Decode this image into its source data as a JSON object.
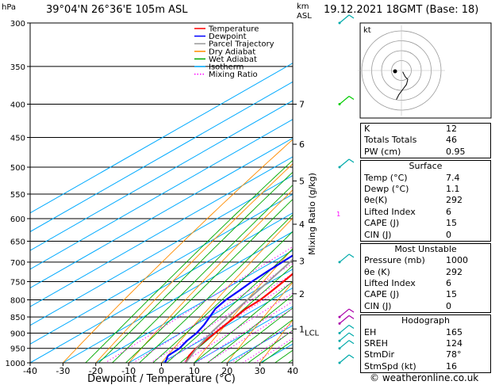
{
  "header": {
    "hpa_label": "hPa",
    "location": "39°04'N  26°36'E  105m  ASL",
    "km_label": "km",
    "asl_label": "ASL",
    "datetime": "19.12.2021  18GMT  (Base: 18)"
  },
  "legend": [
    {
      "label": "Temperature",
      "color": "#ff0000",
      "style": "solid"
    },
    {
      "label": "Dewpoint",
      "color": "#0000ff",
      "style": "solid"
    },
    {
      "label": "Parcel Trajectory",
      "color": "#999999",
      "style": "solid"
    },
    {
      "label": "Dry Adiabat",
      "color": "#ff8c00",
      "style": "solid"
    },
    {
      "label": "Wet Adiabat",
      "color": "#00aa00",
      "style": "solid"
    },
    {
      "label": "Isotherm",
      "color": "#00aaff",
      "style": "solid"
    },
    {
      "label": "Mixing Ratio",
      "color": "#ff00ff",
      "style": "dotted"
    }
  ],
  "chart_data": {
    "type": "line",
    "xlabel": "Dewpoint / Temperature (°C)",
    "ylabel_right": "Mixing Ratio (g/kg)",
    "x_ticks": [
      -40,
      -30,
      -20,
      -10,
      0,
      10,
      20,
      30,
      40
    ],
    "pressure_ticks": [
      300,
      350,
      400,
      450,
      500,
      550,
      600,
      650,
      700,
      750,
      800,
      850,
      900,
      950,
      1000
    ],
    "km_ticks": [
      {
        "label": "7",
        "p": 400
      },
      {
        "label": "6",
        "p": 461
      },
      {
        "label": "5",
        "p": 525
      },
      {
        "label": "4",
        "p": 612
      },
      {
        "label": "3",
        "p": 697
      },
      {
        "label": "2",
        "p": 783
      },
      {
        "label": "1",
        "p": 887
      }
    ],
    "lcl": {
      "label": "LCL",
      "p": 898
    },
    "mixing_ratio_labels": [
      "1",
      "2",
      "3",
      "4",
      "6",
      "8",
      "10",
      "16",
      "20",
      "25"
    ],
    "mixing_ratios": [
      1,
      2,
      3,
      4,
      6,
      8,
      10,
      16,
      20,
      25
    ],
    "series": [
      {
        "name": "Temperature",
        "color": "#ff0000",
        "p": [
          1000,
          975,
          950,
          925,
          900,
          875,
          850,
          825,
          800,
          775,
          750,
          725,
          700,
          675,
          650,
          625,
          600,
          575,
          550,
          525,
          500,
          475,
          450,
          425,
          400,
          375,
          350,
          325,
          300
        ],
        "t": [
          7.4,
          4.6,
          2.8,
          1.6,
          0.4,
          -0.8,
          -2.0,
          -3.2,
          -3.5,
          -4.8,
          -6.2,
          -7.8,
          -9.2,
          -10.8,
          -12.5,
          -14.2,
          -16.0,
          -18.0,
          -20.0,
          -22.2,
          -24.8,
          -27.4,
          -30.2,
          -33.2,
          -36.5,
          -39.8,
          -43.2,
          -44.0,
          -45.0
        ]
      },
      {
        "name": "Dewpoint",
        "color": "#0000ff",
        "p": [
          1000,
          975,
          950,
          925,
          900,
          875,
          850,
          825,
          800,
          775,
          750,
          725,
          700,
          675,
          650,
          625,
          600,
          575,
          550,
          525,
          500,
          475,
          450,
          425,
          400,
          375,
          350,
          325,
          300
        ],
        "t": [
          1.1,
          -1.8,
          -2.2,
          -4.0,
          -5.2,
          -7.2,
          -9.8,
          -12.5,
          -14.0,
          -14.8,
          -15.8,
          -16.5,
          -17.0,
          -17.5,
          -18.0,
          -19.2,
          -20.5,
          -22.4,
          -25.0,
          -28.8,
          -33.5,
          -38.0,
          -42.5,
          -43.5,
          -45.2,
          -47.0,
          -49.0,
          -53.5,
          -58.0
        ]
      },
      {
        "name": "Parcel Trajectory",
        "color": "#999999",
        "p": [
          1000,
          950,
          898,
          850,
          800,
          750,
          700,
          650,
          600,
          550,
          500,
          450,
          400,
          350,
          300
        ],
        "t": [
          7.4,
          3.0,
          -1.0,
          -4.2,
          -7.4,
          -10.8,
          -14.6,
          -18.8,
          -23.4,
          -28.6,
          -34.5,
          -41.2,
          -48.8,
          -57.5,
          -67.0
        ]
      }
    ]
  },
  "hodograph": {
    "label": "kt",
    "points_u": [
      1,
      2,
      3,
      5,
      4,
      1,
      -2,
      -4
    ],
    "points_v": [
      1,
      3,
      5,
      7,
      11,
      15,
      19,
      23
    ]
  },
  "indices": {
    "top": [
      {
        "label": "K",
        "value": "12"
      },
      {
        "label": "Totals Totals",
        "value": "46"
      },
      {
        "label": "PW (cm)",
        "value": "0.95"
      }
    ],
    "surface": {
      "title": "Surface",
      "rows": [
        {
          "label": "Temp (°C)",
          "value": "7.4"
        },
        {
          "label": "Dewp (°C)",
          "value": "1.1"
        },
        {
          "label": "θe(K)",
          "value": "292"
        },
        {
          "label": "Lifted Index",
          "value": "6"
        },
        {
          "label": "CAPE (J)",
          "value": "15"
        },
        {
          "label": "CIN (J)",
          "value": "0"
        }
      ]
    },
    "most_unstable": {
      "title": "Most Unstable",
      "rows": [
        {
          "label": "Pressure (mb)",
          "value": "1000"
        },
        {
          "label": "θe (K)",
          "value": "292"
        },
        {
          "label": "Lifted Index",
          "value": "6"
        },
        {
          "label": "CAPE (J)",
          "value": "15"
        },
        {
          "label": "CIN (J)",
          "value": "0"
        }
      ]
    },
    "hodograph_block": {
      "title": "Hodograph",
      "rows": [
        {
          "label": "EH",
          "value": "165"
        },
        {
          "label": "SREH",
          "value": "124"
        },
        {
          "label": "StmDir",
          "value": "78°"
        },
        {
          "label": "StmSpd (kt)",
          "value": "16"
        }
      ]
    }
  },
  "wind_barbs": {
    "p": [
      300,
      400,
      500,
      700,
      850,
      870,
      900,
      925,
      950,
      1000
    ],
    "colors": [
      "#00aaaa",
      "#00cc00",
      "#00aaaa",
      "#00aaaa",
      "#aa00aa",
      "#aa00aa",
      "#00aaaa",
      "#00aaaa",
      "#00aaaa",
      "#00aaaa"
    ]
  },
  "footer": {
    "copyright": "© weatheronline.co.uk"
  }
}
